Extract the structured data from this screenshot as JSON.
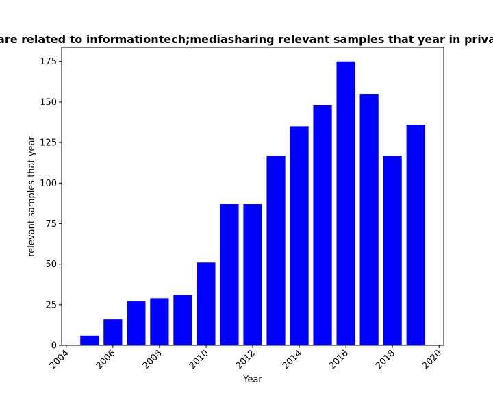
{
  "chart_data": {
    "type": "bar",
    "title": "are related to informationtech;mediasharing relevant samples that year in priva",
    "xlabel": "Year",
    "ylabel": "relevant samples that year",
    "x": [
      2005,
      2006,
      2007,
      2008,
      2009,
      2010,
      2011,
      2012,
      2013,
      2014,
      2015,
      2016,
      2017,
      2018,
      2019
    ],
    "values": [
      6,
      16,
      27,
      29,
      31,
      51,
      87,
      87,
      117,
      135,
      148,
      175,
      155,
      117,
      136
    ],
    "xlim": [
      2003.8,
      2020.2
    ],
    "ylim": [
      0,
      183.75
    ],
    "xticks": [
      2004,
      2006,
      2008,
      2010,
      2012,
      2014,
      2016,
      2018,
      2020
    ],
    "yticks": [
      0,
      25,
      50,
      75,
      100,
      125,
      150,
      175
    ],
    "bar_color": "#0000ff",
    "grid": false,
    "legend": "none"
  }
}
